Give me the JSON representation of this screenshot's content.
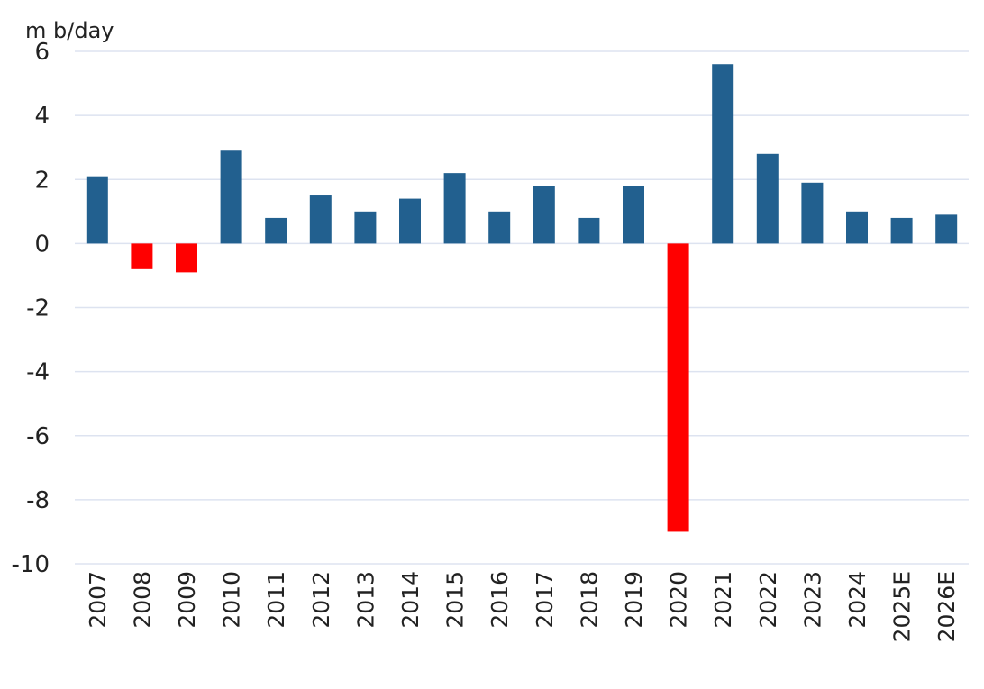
{
  "chart_data": {
    "type": "bar",
    "title": "",
    "ylabel": "m b/day",
    "xlabel": "",
    "ylim": [
      -10,
      6
    ],
    "yticks": [
      6,
      4,
      2,
      0,
      -2,
      -4,
      -6,
      -8,
      -10
    ],
    "grid": true,
    "categories": [
      "2007",
      "2008",
      "2009",
      "2010",
      "2011",
      "2012",
      "2013",
      "2014",
      "2015",
      "2016",
      "2017",
      "2018",
      "2019",
      "2020",
      "2021",
      "2022",
      "2023",
      "2024",
      "2025E",
      "2026E"
    ],
    "values": [
      2.1,
      -0.8,
      -0.9,
      2.9,
      0.8,
      1.5,
      1.0,
      1.4,
      2.2,
      1.0,
      1.8,
      0.8,
      1.8,
      -9.0,
      5.6,
      2.8,
      1.9,
      1.0,
      0.8,
      0.9
    ],
    "colors": {
      "positive": "#22608f",
      "negative": "#ff0000",
      "grid": "#dde3f0"
    }
  }
}
